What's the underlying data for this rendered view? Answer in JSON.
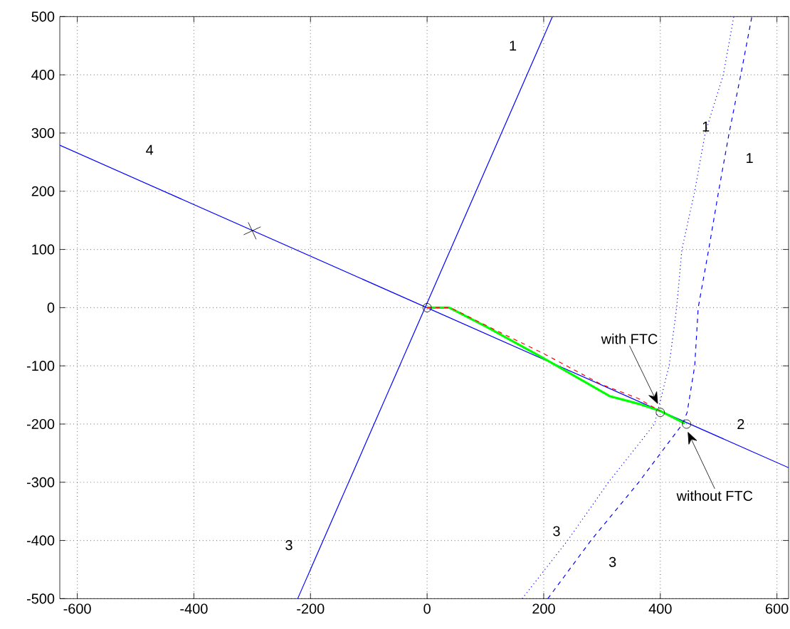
{
  "chart_data": {
    "type": "line",
    "xlim": [
      -630,
      620
    ],
    "ylim": [
      -500,
      500
    ],
    "xticks": [
      -600,
      -400,
      -200,
      0,
      200,
      400,
      600
    ],
    "yticks": [
      -500,
      -400,
      -300,
      -200,
      -100,
      0,
      100,
      200,
      300,
      400,
      500
    ],
    "grid": true,
    "series": [
      {
        "color": "#0000ff",
        "line_style": "solid",
        "x": [
          -630,
          620
        ],
        "values": [
          279,
          -275
        ]
      },
      {
        "color": "#0000ff",
        "line_style": "solid",
        "x": [
          -222,
          215
        ],
        "values": [
          -500,
          500
        ]
      },
      {
        "color": "#0000ff",
        "line_style": "dotted",
        "x": [
          163,
          241,
          311,
          390,
          415,
          428,
          437,
          459,
          477,
          508,
          526
        ],
        "values": [
          -500,
          -400,
          -300,
          -200,
          -100,
          0,
          100,
          200,
          300,
          400,
          500
        ]
      },
      {
        "color": "#0000ff",
        "line_style": "dashed",
        "x": [
          207,
          281,
          363,
          438,
          446,
          459,
          465,
          483,
          500,
          518,
          538,
          557
        ],
        "values": [
          -500,
          -400,
          -300,
          -200,
          -180,
          -100,
          0,
          100,
          200,
          300,
          400,
          500
        ]
      },
      {
        "color": "#00ff00",
        "line_style": "solid",
        "x": [
          0,
          38,
          102,
          200,
          313,
          362,
          399,
          442
        ],
        "values": [
          0,
          0,
          -33,
          -87,
          -152,
          -165,
          -177,
          -199
        ]
      },
      {
        "color": "#ff0000",
        "line_style": "dashed",
        "x": [
          0,
          40,
          116,
          200,
          299,
          362,
          400
        ],
        "values": [
          0,
          0,
          -38,
          -79,
          -132,
          -156,
          -178
        ]
      },
      {
        "type": "scatter",
        "color": "#000000",
        "marker": "circle",
        "x": [
          0,
          400,
          445
        ],
        "values": [
          0,
          -180,
          -200
        ]
      },
      {
        "type": "scatter",
        "color": "#000000",
        "marker": "cross",
        "x": [
          -300
        ],
        "values": [
          132
        ]
      }
    ],
    "annotations": [
      "1",
      "1",
      "1",
      "2",
      "3",
      "3",
      "3",
      "4",
      {
        "text": "with FTC",
        "x": 396,
        "y": -166
      },
      {
        "text": "without FTC",
        "x": 447,
        "y": -213
      }
    ]
  }
}
